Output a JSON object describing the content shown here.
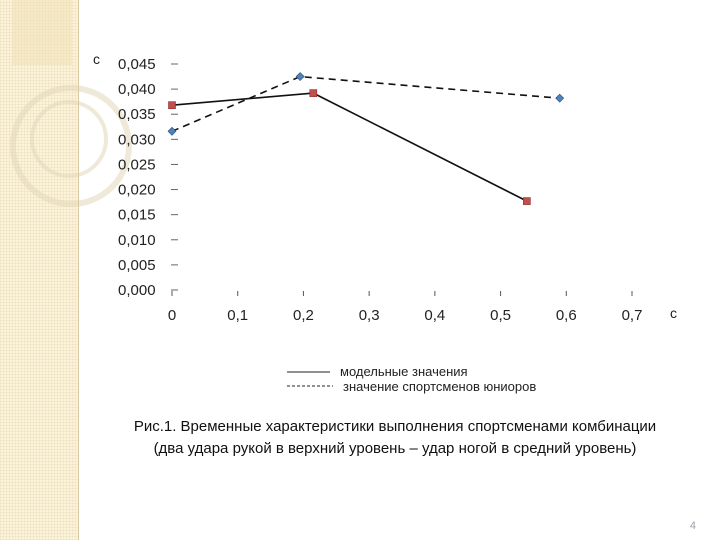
{
  "chart_data": {
    "type": "line",
    "title": "",
    "xlabel": "с",
    "ylabel": "с",
    "xlim": [
      0,
      0.7
    ],
    "ylim": [
      0,
      0.045
    ],
    "x_ticks": [
      "0",
      "0,1",
      "0,2",
      "0,3",
      "0,4",
      "0,5",
      "0,6",
      "0,7"
    ],
    "y_ticks": [
      "0,000",
      "0,005",
      "0,010",
      "0,015",
      "0,020",
      "0,025",
      "0,030",
      "0,035",
      "0,040",
      "0,045"
    ],
    "grid": false,
    "legend_position": "bottom",
    "series": [
      {
        "name": "модельные значения",
        "line_style": "solid",
        "marker": "square",
        "color": "#c0504d",
        "points": [
          [
            0,
            0.0368
          ],
          [
            0.215,
            0.0392
          ],
          [
            0.54,
            0.0177
          ]
        ]
      },
      {
        "name": "значение спортсменов юниоров",
        "line_style": "dashed",
        "marker": "diamond",
        "color": "#4f81bd",
        "points": [
          [
            0,
            0.0316
          ],
          [
            0.195,
            0.0425
          ],
          [
            0.59,
            0.0382
          ]
        ]
      }
    ]
  },
  "legend": {
    "solid_label": "модельные значения",
    "dashed_label": "значение спортсменов юниоров"
  },
  "caption": {
    "line1": "Рис.1. Временные характеристики выполнения спортсменами комбинации",
    "line2": "(два удара рукой в верхний уровень – удар ногой в средний уровень)"
  },
  "page_number": "4"
}
